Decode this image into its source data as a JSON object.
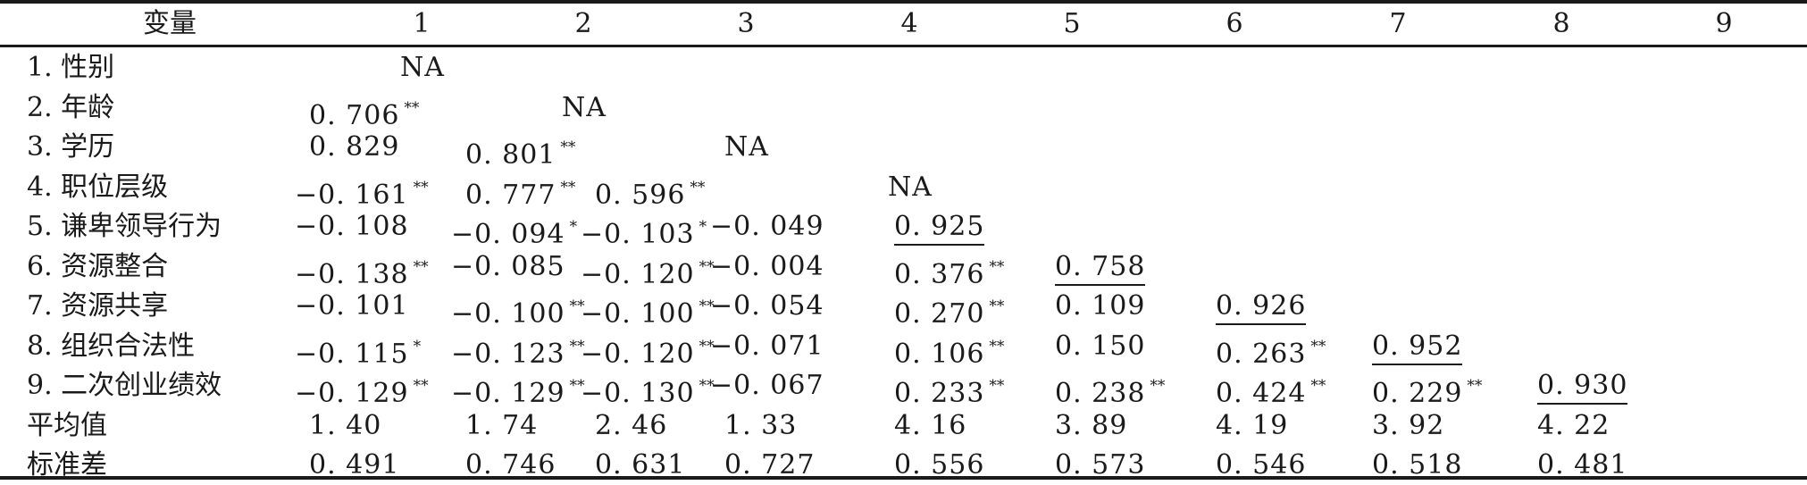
{
  "header": {
    "variable": "变量",
    "columns": [
      "1",
      "2",
      "3",
      "4",
      "5",
      "6",
      "7",
      "8",
      "9"
    ]
  },
  "rows": [
    {
      "label": "1. 性别",
      "cells": [
        {
          "v": "NA",
          "sig": "",
          "ul": false
        }
      ]
    },
    {
      "label": "2. 年龄",
      "cells": [
        {
          "v": "0. 706",
          "sig": "**",
          "ul": false
        },
        {
          "v": "NA",
          "sig": "",
          "ul": false
        }
      ]
    },
    {
      "label": "3. 学历",
      "cells": [
        {
          "v": "0. 829",
          "sig": "",
          "ul": false
        },
        {
          "v": "0. 801",
          "sig": "**",
          "ul": false
        },
        {
          "v": "NA",
          "sig": "",
          "ul": false
        }
      ]
    },
    {
      "label": "4. 职位层级",
      "cells": [
        {
          "v": "−0. 161",
          "sig": "**",
          "ul": false
        },
        {
          "v": "0. 777",
          "sig": "**",
          "ul": false
        },
        {
          "v": "0. 596",
          "sig": "**",
          "ul": false
        },
        {
          "v": "NA",
          "sig": "",
          "ul": false
        }
      ]
    },
    {
      "label": "5. 谦卑领导行为",
      "cells": [
        {
          "v": "−0. 108",
          "sig": "",
          "ul": false
        },
        {
          "v": "−0. 094",
          "sig": "*",
          "ul": false
        },
        {
          "v": "−0. 103",
          "sig": "*",
          "ul": false
        },
        {
          "v": "−0. 049",
          "sig": "",
          "ul": false
        },
        {
          "v": "0. 925",
          "sig": "",
          "ul": true
        }
      ]
    },
    {
      "label": "6. 资源整合",
      "cells": [
        {
          "v": "−0. 138",
          "sig": "**",
          "ul": false
        },
        {
          "v": "−0. 085",
          "sig": "",
          "ul": false
        },
        {
          "v": "−0. 120",
          "sig": "**",
          "ul": false
        },
        {
          "v": "−0. 004",
          "sig": "",
          "ul": false
        },
        {
          "v": "0. 376",
          "sig": "**",
          "ul": false
        },
        {
          "v": "0. 758",
          "sig": "",
          "ul": true
        }
      ]
    },
    {
      "label": "7. 资源共享",
      "cells": [
        {
          "v": "−0. 101",
          "sig": "",
          "ul": false
        },
        {
          "v": "−0. 100",
          "sig": "**",
          "ul": false
        },
        {
          "v": "−0. 100",
          "sig": "**",
          "ul": false
        },
        {
          "v": "−0. 054",
          "sig": "",
          "ul": false
        },
        {
          "v": "0. 270",
          "sig": "**",
          "ul": false
        },
        {
          "v": "0. 109",
          "sig": "",
          "ul": false
        },
        {
          "v": "0. 926",
          "sig": "",
          "ul": true
        }
      ]
    },
    {
      "label": "8. 组织合法性",
      "cells": [
        {
          "v": "−0. 115",
          "sig": "*",
          "ul": false
        },
        {
          "v": "−0. 123",
          "sig": "**",
          "ul": false
        },
        {
          "v": "−0. 120",
          "sig": "**",
          "ul": false
        },
        {
          "v": "−0. 071",
          "sig": "",
          "ul": false
        },
        {
          "v": "0. 106",
          "sig": "**",
          "ul": false
        },
        {
          "v": "0. 150",
          "sig": "",
          "ul": false
        },
        {
          "v": "0. 263",
          "sig": "**",
          "ul": false
        },
        {
          "v": "0. 952",
          "sig": "",
          "ul": true
        }
      ]
    },
    {
      "label": "9. 二次创业绩效",
      "cells": [
        {
          "v": "−0. 129",
          "sig": "**",
          "ul": false
        },
        {
          "v": "−0. 129",
          "sig": "**",
          "ul": false
        },
        {
          "v": "−0. 130",
          "sig": "**",
          "ul": false
        },
        {
          "v": "−0. 067",
          "sig": "",
          "ul": false
        },
        {
          "v": "0. 233",
          "sig": "**",
          "ul": false
        },
        {
          "v": "0. 238",
          "sig": "**",
          "ul": false
        },
        {
          "v": "0. 424",
          "sig": "**",
          "ul": false
        },
        {
          "v": "0. 229",
          "sig": "**",
          "ul": false
        },
        {
          "v": "0. 930",
          "sig": "",
          "ul": true
        }
      ]
    },
    {
      "label": "平均值",
      "cells": [
        {
          "v": "1. 40",
          "sig": "",
          "ul": false
        },
        {
          "v": "1. 74",
          "sig": "",
          "ul": false
        },
        {
          "v": "2. 46",
          "sig": "",
          "ul": false
        },
        {
          "v": "1. 33",
          "sig": "",
          "ul": false
        },
        {
          "v": "4. 16",
          "sig": "",
          "ul": false
        },
        {
          "v": "3. 89",
          "sig": "",
          "ul": false
        },
        {
          "v": "4. 19",
          "sig": "",
          "ul": false
        },
        {
          "v": "3. 92",
          "sig": "",
          "ul": false
        },
        {
          "v": "4. 22",
          "sig": "",
          "ul": false
        }
      ]
    },
    {
      "label": "标准差",
      "cells": [
        {
          "v": "0. 491",
          "sig": "",
          "ul": false
        },
        {
          "v": "0. 746",
          "sig": "",
          "ul": false
        },
        {
          "v": "0. 631",
          "sig": "",
          "ul": false
        },
        {
          "v": "0. 727",
          "sig": "",
          "ul": false
        },
        {
          "v": "0. 556",
          "sig": "",
          "ul": false
        },
        {
          "v": "0. 573",
          "sig": "",
          "ul": false
        },
        {
          "v": "0. 546",
          "sig": "",
          "ul": false
        },
        {
          "v": "0. 518",
          "sig": "",
          "ul": false
        },
        {
          "v": "0. 481",
          "sig": "",
          "ul": false
        }
      ]
    }
  ]
}
